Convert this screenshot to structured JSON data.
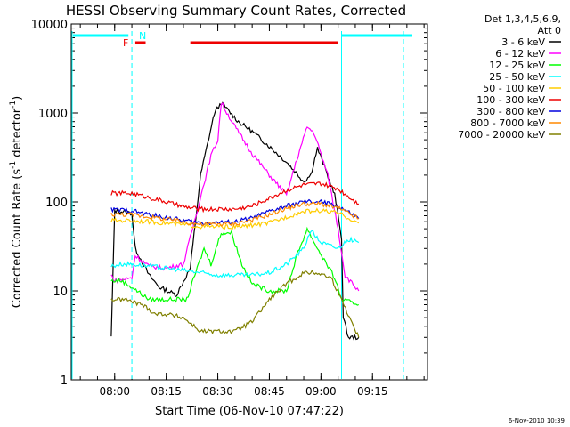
{
  "chart_data": {
    "type": "line",
    "title": "HESSI Observing Summary Count Rates, Corrected",
    "xlabel": "Start Time (06-Nov-10 07:47:22)",
    "ylabel": "Corrected Count Rate (s⁻¹ detector⁻¹)",
    "ylabel_parts": [
      "Corrected Count Rate (s",
      "-1",
      " detector",
      "-1",
      ")"
    ],
    "yscale": "log",
    "ylim": [
      1,
      10000
    ],
    "xlim": [
      "07:47:22",
      "09:31:00"
    ],
    "x_ticks": [
      "08:00",
      "08:15",
      "08:30",
      "08:45",
      "09:00",
      "09:15"
    ],
    "y_ticks": [
      "1",
      "10",
      "100",
      "1000",
      "10000"
    ],
    "legend_header": [
      "Det 1,3,4,5,6,9,",
      "Att 0"
    ],
    "legend_position": "right",
    "footer": "6-Nov-2010 10:39",
    "flag_labels": [
      "F",
      "N"
    ],
    "series": [
      {
        "name": "3 - 6 keV",
        "color": "#000000",
        "points": [
          [
            "07:59",
            3
          ],
          [
            "08:00",
            80
          ],
          [
            "08:05",
            75
          ],
          [
            "08:06",
            30
          ],
          [
            "08:10",
            15
          ],
          [
            "08:13",
            11
          ],
          [
            "08:18",
            9
          ],
          [
            "08:22",
            18
          ],
          [
            "08:25",
            200
          ],
          [
            "08:29",
            1000
          ],
          [
            "08:31",
            1300
          ],
          [
            "08:36",
            800
          ],
          [
            "08:40",
            620
          ],
          [
            "08:45",
            420
          ],
          [
            "08:50",
            280
          ],
          [
            "08:55",
            170
          ],
          [
            "08:57",
            200
          ],
          [
            "08:59",
            400
          ],
          [
            "09:01",
            250
          ],
          [
            "09:04",
            120
          ],
          [
            "09:06",
            40
          ],
          [
            "09:06.5",
            5
          ],
          [
            "09:08",
            3
          ],
          [
            "09:11",
            3
          ]
        ]
      },
      {
        "name": "6 - 12 keV",
        "color": "#ff00ff",
        "points": [
          [
            "07:59",
            15
          ],
          [
            "08:00",
            13
          ],
          [
            "08:05",
            14
          ],
          [
            "08:06",
            25
          ],
          [
            "08:10",
            19
          ],
          [
            "08:15",
            18
          ],
          [
            "08:20",
            20
          ],
          [
            "08:24",
            80
          ],
          [
            "08:28",
            330
          ],
          [
            "08:30",
            500
          ],
          [
            "08:31",
            1300
          ],
          [
            "08:35",
            700
          ],
          [
            "08:40",
            350
          ],
          [
            "08:45",
            200
          ],
          [
            "08:50",
            120
          ],
          [
            "08:53",
            300
          ],
          [
            "08:56",
            700
          ],
          [
            "08:58",
            600
          ],
          [
            "09:02",
            200
          ],
          [
            "09:05",
            50
          ],
          [
            "09:07",
            15
          ],
          [
            "09:11",
            10
          ]
        ]
      },
      {
        "name": "12 - 25 keV",
        "color": "#00ff00",
        "points": [
          [
            "07:59",
            13
          ],
          [
            "08:02",
            13
          ],
          [
            "08:05",
            11
          ],
          [
            "08:10",
            8
          ],
          [
            "08:15",
            8
          ],
          [
            "08:21",
            8
          ],
          [
            "08:24",
            18
          ],
          [
            "08:26",
            30
          ],
          [
            "08:28",
            20
          ],
          [
            "08:31",
            45
          ],
          [
            "08:34",
            45
          ],
          [
            "08:37",
            20
          ],
          [
            "08:40",
            12
          ],
          [
            "08:45",
            10
          ],
          [
            "08:50",
            10
          ],
          [
            "08:53",
            25
          ],
          [
            "08:56",
            50
          ],
          [
            "08:59",
            30
          ],
          [
            "09:04",
            14
          ],
          [
            "09:06",
            8
          ],
          [
            "09:11",
            7
          ]
        ]
      },
      {
        "name": "25 - 50 keV",
        "color": "#00ffff",
        "points": [
          [
            "07:59",
            19
          ],
          [
            "08:02",
            20
          ],
          [
            "08:05",
            20
          ],
          [
            "08:10",
            19
          ],
          [
            "08:15",
            18
          ],
          [
            "08:20",
            17
          ],
          [
            "08:25",
            16
          ],
          [
            "08:30",
            15
          ],
          [
            "08:40",
            15
          ],
          [
            "08:45",
            16
          ],
          [
            "08:50",
            20
          ],
          [
            "08:55",
            30
          ],
          [
            "08:57",
            48
          ],
          [
            "09:00",
            35
          ],
          [
            "09:05",
            30
          ],
          [
            "09:08",
            38
          ],
          [
            "09:11",
            35
          ]
        ]
      },
      {
        "name": "50 - 100 keV",
        "color": "#ffcc00",
        "points": [
          [
            "07:59",
            62
          ],
          [
            "08:05",
            62
          ],
          [
            "08:10",
            60
          ],
          [
            "08:15",
            58
          ],
          [
            "08:25",
            53
          ],
          [
            "08:35",
            52
          ],
          [
            "08:45",
            58
          ],
          [
            "08:50",
            68
          ],
          [
            "08:55",
            78
          ],
          [
            "09:00",
            80
          ],
          [
            "09:05",
            75
          ],
          [
            "09:11",
            58
          ]
        ]
      },
      {
        "name": "100 - 300 keV",
        "color": "#ee0000",
        "points": [
          [
            "07:59",
            125
          ],
          [
            "08:05",
            125
          ],
          [
            "08:10",
            112
          ],
          [
            "08:15",
            100
          ],
          [
            "08:20",
            88
          ],
          [
            "08:25",
            83
          ],
          [
            "08:35",
            83
          ],
          [
            "08:40",
            90
          ],
          [
            "08:45",
            110
          ],
          [
            "08:50",
            135
          ],
          [
            "08:55",
            155
          ],
          [
            "09:00",
            160
          ],
          [
            "09:05",
            140
          ],
          [
            "09:11",
            95
          ]
        ]
      },
      {
        "name": "300 - 800 keV",
        "color": "#0000dd",
        "points": [
          [
            "07:59",
            82
          ],
          [
            "08:05",
            80
          ],
          [
            "08:10",
            72
          ],
          [
            "08:15",
            67
          ],
          [
            "08:20",
            62
          ],
          [
            "08:25",
            58
          ],
          [
            "08:35",
            60
          ],
          [
            "08:40",
            66
          ],
          [
            "08:45",
            78
          ],
          [
            "08:50",
            90
          ],
          [
            "08:55",
            100
          ],
          [
            "09:00",
            100
          ],
          [
            "09:05",
            90
          ],
          [
            "09:11",
            65
          ]
        ]
      },
      {
        "name": "800 - 7000 keV",
        "color": "#ff8800",
        "points": [
          [
            "07:59",
            73
          ],
          [
            "08:05",
            72
          ],
          [
            "08:10",
            68
          ],
          [
            "08:15",
            64
          ],
          [
            "08:25",
            56
          ],
          [
            "08:35",
            57
          ],
          [
            "08:40",
            63
          ],
          [
            "08:45",
            72
          ],
          [
            "08:50",
            85
          ],
          [
            "08:55",
            95
          ],
          [
            "09:00",
            95
          ],
          [
            "09:05",
            85
          ],
          [
            "09:11",
            65
          ]
        ]
      },
      {
        "name": "7000 - 20000 keV",
        "color": "#808000",
        "points": [
          [
            "07:59",
            8
          ],
          [
            "08:03",
            8
          ],
          [
            "08:08",
            7
          ],
          [
            "08:12",
            5.5
          ],
          [
            "08:15",
            5.5
          ],
          [
            "08:20",
            5
          ],
          [
            "08:25",
            3.5
          ],
          [
            "08:35",
            3.5
          ],
          [
            "08:40",
            4.5
          ],
          [
            "08:45",
            8
          ],
          [
            "08:50",
            12
          ],
          [
            "08:55",
            16
          ],
          [
            "08:59",
            16
          ],
          [
            "09:03",
            14
          ],
          [
            "09:06",
            8
          ],
          [
            "09:11",
            3
          ]
        ]
      }
    ],
    "flag_bars": [
      {
        "color": "#00ffff",
        "segments": [
          [
            "07:47:22",
            "08:04"
          ],
          [
            "09:06",
            "09:24"
          ]
        ]
      },
      {
        "color": "#ee0000",
        "segments": [
          [
            "08:06",
            "08:09"
          ],
          [
            "08:22",
            "09:05"
          ]
        ]
      }
    ],
    "vertical_markers": [
      {
        "color": "#00ffff",
        "style": "solid",
        "x": [
          "07:47:22",
          "09:06"
        ]
      },
      {
        "color": "#00ffff",
        "style": "dashed",
        "x": [
          "08:05",
          "09:24"
        ]
      }
    ]
  }
}
